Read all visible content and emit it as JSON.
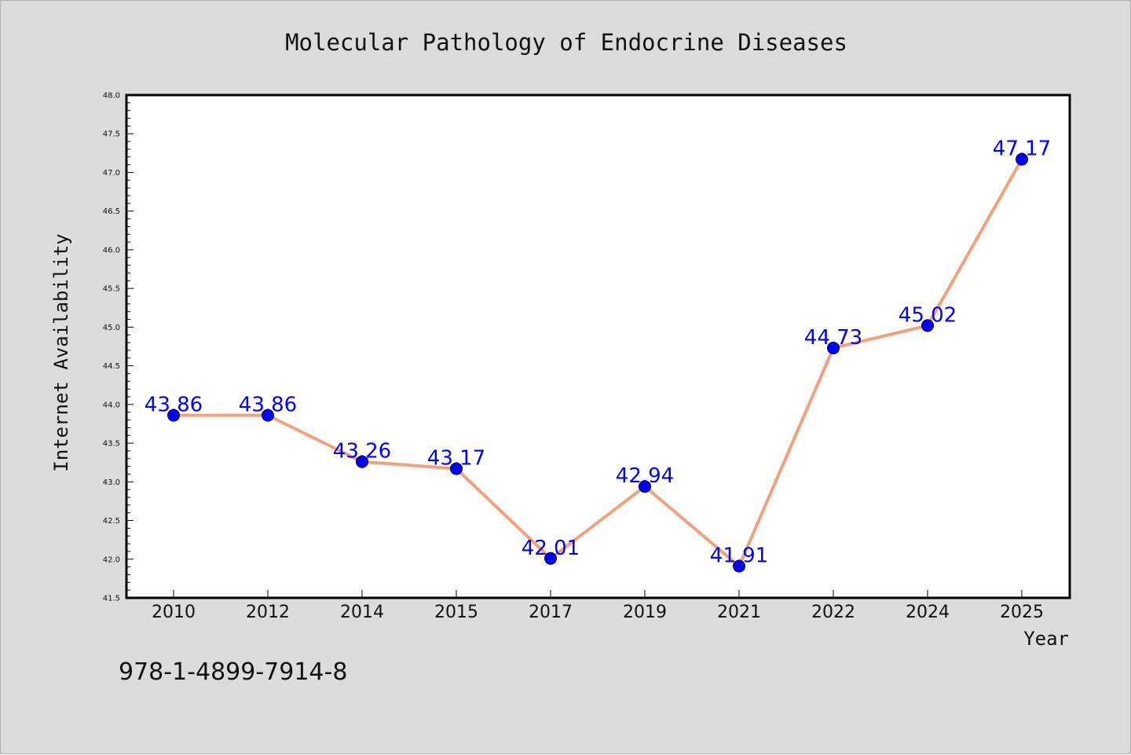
{
  "chart_data": {
    "type": "line",
    "title": "Molecular Pathology of Endocrine Diseases",
    "xlabel": "Year",
    "ylabel": "Internet Availability",
    "categories": [
      "2010",
      "2012",
      "2014",
      "2015",
      "2017",
      "2019",
      "2021",
      "2022",
      "2024",
      "2025"
    ],
    "series": [
      {
        "values": [
          43.86,
          43.86,
          43.26,
          43.17,
          42.01,
          42.94,
          41.91,
          44.73,
          45.02,
          47.17
        ]
      }
    ],
    "data_labels": [
      "43.86",
      "43.86",
      "43.26",
      "43.17",
      "42.01",
      "42.94",
      "41.91",
      "44.73",
      "45.02",
      "47.17"
    ],
    "ylim": [
      41.5,
      48.0
    ],
    "yticks": [
      "41.5",
      "42.0",
      "42.5",
      "43.0",
      "43.5",
      "44.0",
      "44.5",
      "45.0",
      "45.5",
      "46.0",
      "46.5",
      "47.0",
      "47.5",
      "48.0"
    ],
    "grid": false,
    "legend": "none",
    "line_color": "#f4a07a",
    "marker_color": "#0000ff",
    "label_color": "#0000ff",
    "background": "#dcdcdc",
    "plot_background": "#ffffff"
  },
  "annotation": "978-1-4899-7914-8"
}
